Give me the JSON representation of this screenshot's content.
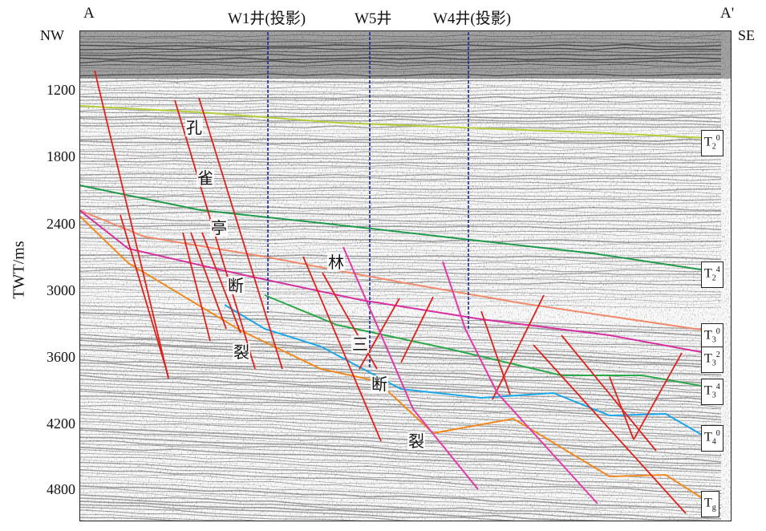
{
  "header": {
    "left_corner": "A",
    "right_corner": "A'",
    "left_direction": "NW",
    "right_direction": "SE"
  },
  "wells": [
    {
      "label": "W1井(投影)"
    },
    {
      "label": "W5井"
    },
    {
      "label": "W4井(投影)"
    }
  ],
  "y_axis": {
    "label": "TWT/ms",
    "ticks": [
      "1200",
      "1800",
      "2400",
      "3000",
      "3600",
      "4200",
      "4800"
    ]
  },
  "fault_labels": {
    "left_chars": [
      "孔",
      "雀",
      "亭",
      "断",
      "裂"
    ],
    "right_chars": [
      "林",
      "三",
      "断",
      "裂"
    ]
  },
  "horizons": [
    {
      "base": "T",
      "sub": "2",
      "sup": "0",
      "color": "#b5cf3a"
    },
    {
      "base": "T",
      "sub": "2",
      "sup": "4",
      "color": "#1e9a4a"
    },
    {
      "base": "T",
      "sub": "3",
      "sup": "0",
      "color": "#f08a6a"
    },
    {
      "base": "T",
      "sub": "3",
      "sup": "2",
      "color": "#d62fa0"
    },
    {
      "base": "T",
      "sub": "3",
      "sup": "4",
      "color": "#2aa84a"
    },
    {
      "base": "T",
      "sub": "4",
      "sup": "0",
      "color": "#1aa6e8"
    },
    {
      "base": "T",
      "sub": "g",
      "sup": "",
      "color": "#f08a20"
    }
  ],
  "colors": {
    "fault_main": "#e0201a",
    "fault_magenta": "#e03aa8",
    "well_line": "#1a2a9a"
  }
}
